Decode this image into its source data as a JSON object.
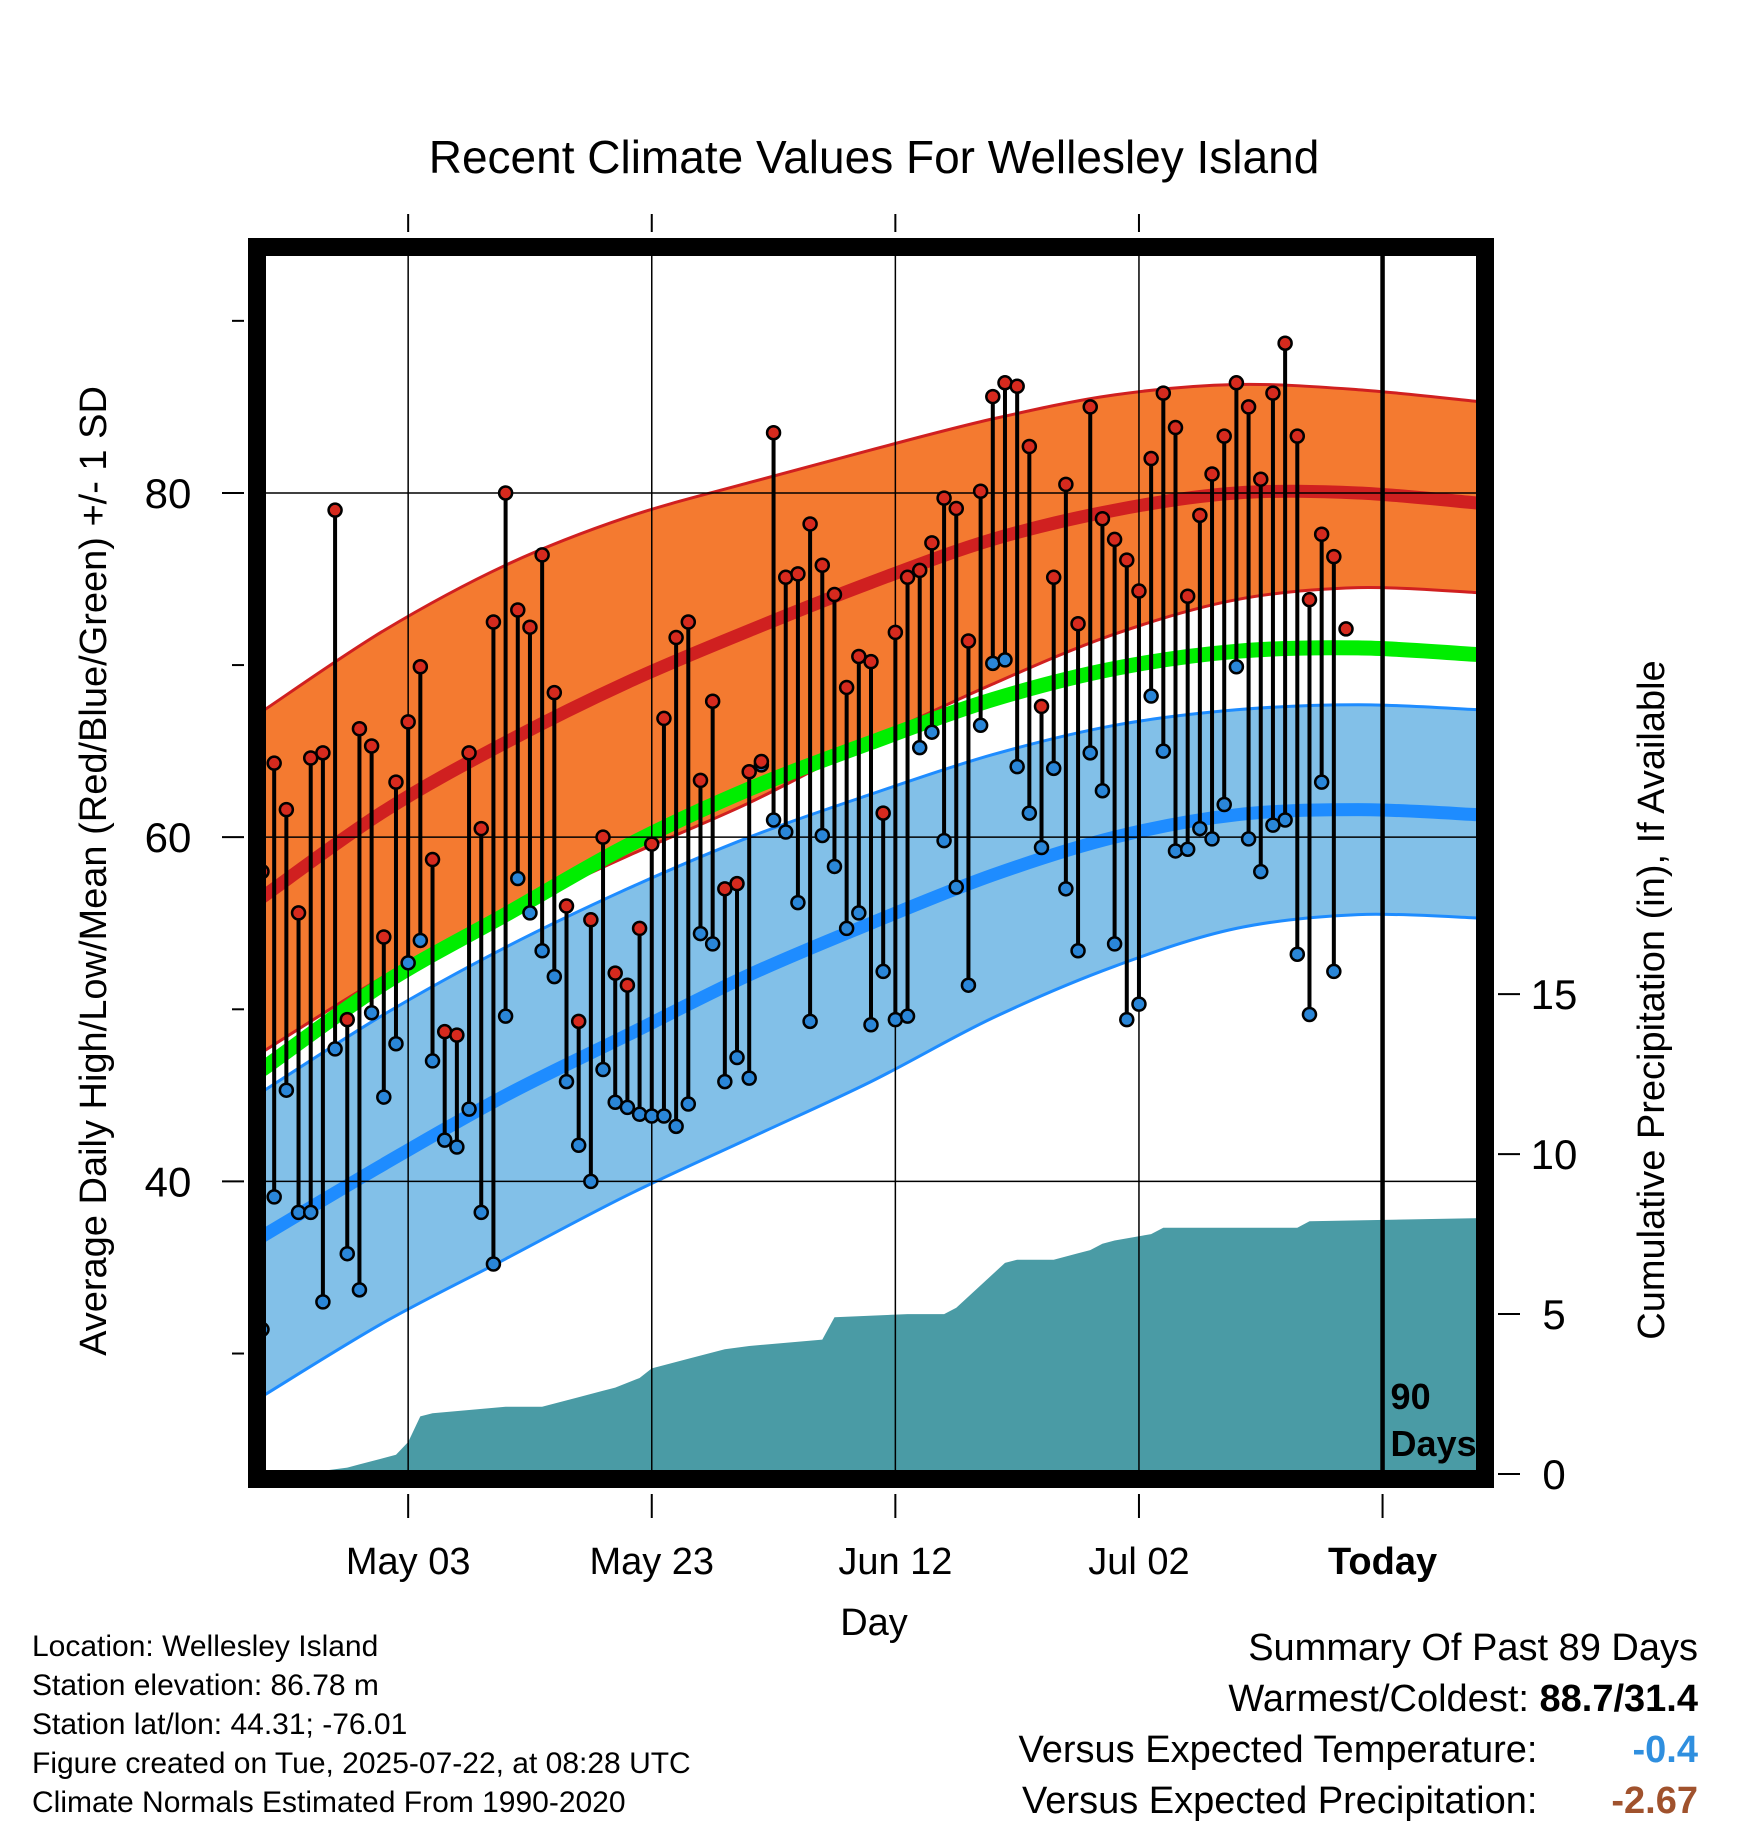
{
  "title": "Recent Climate Values For Wellesley Island",
  "chart_data": {
    "type": "line",
    "title": "Recent Climate Values For Wellesley Island",
    "xlabel": "Day",
    "ylabel_left": "Average Daily High/Low/Mean (Red/Blue/Green) +/- 1 SD",
    "ylabel_right": "Cumulative Precipitation (in), If Available",
    "x_tick_labels": [
      "May 03",
      "May 23",
      "Jun 12",
      "Jul 02",
      "Today"
    ],
    "x_tick_days": [
      12,
      32,
      52,
      72,
      92
    ],
    "x_range_days": [
      0,
      100
    ],
    "ylim_temp": [
      23,
      94
    ],
    "y_ticks_temp": [
      40,
      60,
      80
    ],
    "y_minor_ticks_temp": [
      30,
      50,
      70,
      90
    ],
    "y_ticks_precip": [
      0,
      5,
      10,
      15
    ],
    "precip_scale_max_in": 38.2,
    "grid": true,
    "today_marker": {
      "day": 92,
      "label_line1": "90",
      "label_line2": "Days"
    },
    "normals": {
      "days": [
        0,
        10,
        20,
        30,
        40,
        50,
        60,
        70,
        80,
        90,
        100
      ],
      "mean_high": [
        56.5,
        61.5,
        65.5,
        69.0,
        72.0,
        74.8,
        77.3,
        79.0,
        80.0,
        80.0,
        79.4
      ],
      "high_plus_sd": [
        67.3,
        72.0,
        75.8,
        78.6,
        80.6,
        82.5,
        84.3,
        85.7,
        86.3,
        86.0,
        85.3
      ],
      "high_minus_sd": [
        47.5,
        51.9,
        55.6,
        58.9,
        62.0,
        65.6,
        68.9,
        71.8,
        73.8,
        74.5,
        74.2
      ],
      "mean_avg": [
        46.5,
        51.5,
        55.5,
        59.5,
        62.8,
        65.5,
        68.0,
        69.8,
        70.8,
        71.0,
        70.6
      ],
      "mean_low": [
        36.8,
        41.0,
        45.0,
        48.5,
        52.0,
        55.0,
        57.8,
        60.0,
        61.3,
        61.6,
        61.3
      ],
      "low_plus_sd": [
        45.2,
        49.7,
        53.6,
        57.0,
        60.0,
        62.5,
        64.8,
        66.5,
        67.4,
        67.7,
        67.4
      ],
      "low_minus_sd": [
        27.5,
        31.8,
        35.5,
        39.2,
        42.5,
        45.8,
        49.5,
        52.5,
        54.7,
        55.5,
        55.3
      ]
    },
    "observed": {
      "days": [
        0,
        1,
        2,
        3,
        4,
        5,
        6,
        7,
        8,
        9,
        10,
        11,
        12,
        13,
        14,
        15,
        16,
        17,
        18,
        19,
        20,
        21,
        22,
        23,
        24,
        25,
        26,
        27,
        28,
        29,
        30,
        31,
        32,
        33,
        34,
        35,
        36,
        37,
        38,
        39,
        40,
        41,
        42,
        43,
        44,
        45,
        46,
        47,
        48,
        49,
        50,
        51,
        52,
        53,
        54,
        55,
        56,
        57,
        58,
        59,
        60,
        61,
        62,
        63,
        64,
        65,
        66,
        67,
        68,
        69,
        70,
        71,
        72,
        73,
        74,
        75,
        76,
        77,
        78,
        79,
        80,
        81,
        82,
        83,
        84,
        85,
        86,
        87,
        88,
        89,
        90
      ],
      "high": [
        58.0,
        64.3,
        61.6,
        55.6,
        64.6,
        64.9,
        79.0,
        49.4,
        66.3,
        65.3,
        54.2,
        63.2,
        66.7,
        69.9,
        58.7,
        48.7,
        48.5,
        64.9,
        60.5,
        72.5,
        80.0,
        73.2,
        72.2,
        76.4,
        68.4,
        56.0,
        49.3,
        55.2,
        60.0,
        52.1,
        51.4,
        54.7,
        59.6,
        66.9,
        71.6,
        72.5,
        63.3,
        67.9,
        57.0,
        57.3,
        63.8,
        64.4,
        83.5,
        75.1,
        75.3,
        78.2,
        75.8,
        74.1,
        68.7,
        70.5,
        70.2,
        61.4,
        71.9,
        75.1,
        75.5,
        77.1,
        79.7,
        79.1,
        71.4,
        80.1,
        85.6,
        86.4,
        86.2,
        82.7,
        67.6,
        75.1,
        80.5,
        72.4,
        85.0,
        78.5,
        77.3,
        76.1,
        74.3,
        82.0,
        85.8,
        83.8,
        74.0,
        78.7,
        81.1,
        83.3,
        86.4,
        85.0,
        80.8,
        85.8,
        88.7,
        83.3,
        73.8,
        77.6,
        76.3,
        72.1,
        null
      ],
      "low": [
        31.4,
        39.1,
        45.3,
        38.2,
        38.2,
        33.0,
        47.7,
        35.8,
        33.7,
        49.8,
        44.9,
        48.0,
        52.7,
        54.0,
        47.0,
        42.4,
        42.0,
        44.2,
        38.2,
        35.2,
        49.6,
        57.6,
        55.6,
        53.4,
        51.9,
        45.8,
        42.1,
        40.0,
        46.5,
        44.6,
        44.3,
        43.9,
        43.8,
        43.8,
        43.2,
        44.5,
        54.4,
        53.8,
        45.8,
        47.2,
        46.0,
        64.2,
        61.0,
        60.3,
        56.2,
        49.3,
        60.1,
        58.3,
        54.7,
        55.6,
        49.1,
        52.2,
        49.4,
        49.6,
        65.2,
        66.1,
        59.8,
        57.1,
        51.4,
        66.5,
        70.1,
        70.3,
        64.1,
        61.4,
        59.4,
        64.0,
        57.0,
        53.4,
        64.9,
        62.7,
        53.8,
        49.4,
        50.3,
        68.2,
        65.0,
        59.2,
        59.3,
        60.5,
        59.9,
        61.9,
        69.9,
        59.9,
        58.0,
        60.7,
        61.0,
        53.2,
        49.7,
        63.2,
        52.2,
        null,
        null
      ]
    },
    "cumulative_precip": {
      "days": [
        0,
        3,
        7,
        8,
        10,
        11,
        12,
        13,
        14,
        20,
        23,
        25,
        28,
        29,
        31,
        32,
        35,
        38,
        40,
        46,
        47,
        53,
        56,
        57,
        61,
        62,
        65,
        67,
        68,
        69,
        70,
        73,
        74,
        85,
        86,
        100
      ],
      "values": [
        0.0,
        0.0,
        0.2,
        0.3,
        0.5,
        0.6,
        1.0,
        1.8,
        1.9,
        2.1,
        2.1,
        2.3,
        2.6,
        2.7,
        3.0,
        3.3,
        3.6,
        3.9,
        4.0,
        4.2,
        4.9,
        5.0,
        5.0,
        5.2,
        6.6,
        6.7,
        6.7,
        6.9,
        7.0,
        7.2,
        7.3,
        7.5,
        7.7,
        7.7,
        7.9,
        8.0
      ]
    },
    "colors": {
      "high_band": "#f47a30",
      "high_line": "#d02020",
      "low_band": "#82c0e8",
      "low_line": "#1e8cff",
      "mean_line": "#00ee00",
      "precip_fill": "#4a9ba5",
      "high_dot": "#d62a1e",
      "low_dot": "#2a86d8"
    }
  },
  "info": {
    "location": "Location: Wellesley Island",
    "elevation": "Station elevation: 86.78 m",
    "latlon": "Station lat/lon: 44.31; -76.01",
    "created": "Figure created on Tue, 2025-07-22, at 08:28 UTC",
    "normals_period": "Climate Normals Estimated From 1990-2020"
  },
  "summary": {
    "heading": "Summary Of Past 89 Days",
    "warm_cold_label": "Warmest/Coldest:",
    "warm_cold_value": "88.7/31.4",
    "temp_label": "Versus Expected Temperature:",
    "temp_value": "-0.4",
    "temp_color": "#2f8fdf",
    "precip_label": "Versus Expected Precipitation:",
    "precip_value": "-2.67",
    "precip_color": "#a0522d"
  }
}
